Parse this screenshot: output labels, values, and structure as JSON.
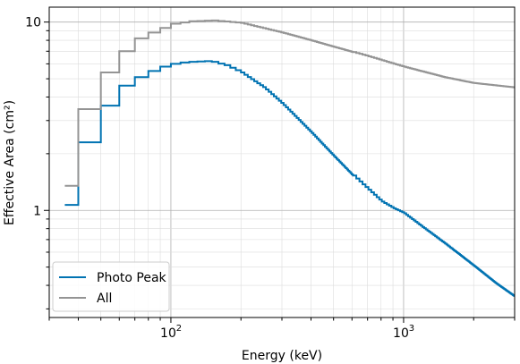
{
  "chart_data": {
    "type": "line",
    "title": "",
    "xlabel": "Energy (keV)",
    "ylabel": "Effective Area (cm²)",
    "x_scale": "log",
    "y_scale": "log",
    "xlim": [
      30,
      3000
    ],
    "ylim": [
      0.27,
      12
    ],
    "grid": true,
    "legend_position": "lower-left",
    "x_ticks": [
      {
        "value": 100,
        "base": "10",
        "exp": "2"
      },
      {
        "value": 1000,
        "base": "10",
        "exp": "3"
      }
    ],
    "y_ticks": [
      {
        "value": 1,
        "label": "1"
      },
      {
        "value": 10,
        "label": "10"
      }
    ],
    "series": [
      {
        "name": "Photo Peak",
        "color": "#0173b2",
        "points": [
          [
            35,
            1.07
          ],
          [
            40,
            2.3
          ],
          [
            50,
            3.6
          ],
          [
            60,
            4.6
          ],
          [
            70,
            5.1
          ],
          [
            80,
            5.5
          ],
          [
            90,
            5.8
          ],
          [
            100,
            6.0
          ],
          [
            110,
            6.1
          ],
          [
            120,
            6.15
          ],
          [
            130,
            6.18
          ],
          [
            140,
            6.2
          ],
          [
            150,
            6.15
          ],
          [
            170,
            5.9
          ],
          [
            200,
            5.4
          ],
          [
            250,
            4.5
          ],
          [
            300,
            3.7
          ],
          [
            400,
            2.6
          ],
          [
            500,
            1.95
          ],
          [
            600,
            1.55
          ],
          [
            700,
            1.3
          ],
          [
            800,
            1.12
          ],
          [
            900,
            1.03
          ],
          [
            1000,
            0.97
          ],
          [
            1200,
            0.82
          ],
          [
            1500,
            0.67
          ],
          [
            2000,
            0.51
          ],
          [
            2500,
            0.41
          ],
          [
            3000,
            0.35
          ]
        ]
      },
      {
        "name": "All",
        "color": "#949494",
        "points": [
          [
            35,
            1.35
          ],
          [
            40,
            3.45
          ],
          [
            50,
            5.4
          ],
          [
            60,
            7.0
          ],
          [
            70,
            8.2
          ],
          [
            80,
            8.8
          ],
          [
            90,
            9.3
          ],
          [
            100,
            9.8
          ],
          [
            120,
            10.1
          ],
          [
            150,
            10.2
          ],
          [
            200,
            9.9
          ],
          [
            300,
            8.8
          ],
          [
            400,
            8.0
          ],
          [
            500,
            7.4
          ],
          [
            700,
            6.6
          ],
          [
            1000,
            5.8
          ],
          [
            1500,
            5.1
          ],
          [
            2000,
            4.75
          ],
          [
            3000,
            4.5
          ]
        ]
      }
    ]
  }
}
